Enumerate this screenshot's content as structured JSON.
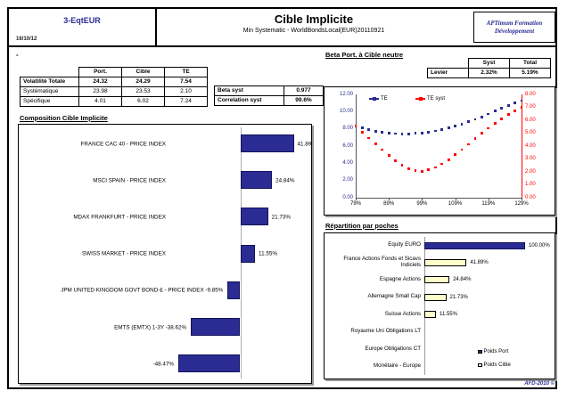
{
  "page": {
    "code": "3-EqtEUR",
    "date": "16/10/12",
    "title": "Cible Implicite",
    "subtitle": "Min Systematic - WorldBondsLocal(EUR)20110921",
    "org_line1": "APTimum Formation",
    "org_line2": "Développement",
    "dash": "-",
    "footer": "AFD-2010 ©"
  },
  "stats_table": {
    "columns": [
      "Port.",
      "Cible",
      "TE"
    ],
    "rows": [
      {
        "label": "Volatilité Totale",
        "values": [
          "24.32",
          "24.29",
          "7.54"
        ]
      },
      {
        "label": "Systématique",
        "values": [
          "23.98",
          "23.53",
          "2.10"
        ]
      },
      {
        "label": "Spécifique",
        "values": [
          "4.01",
          "6.02",
          "7.24"
        ]
      }
    ]
  },
  "beta_table": {
    "rows": [
      {
        "label": "Beta syst",
        "value": "0.977"
      },
      {
        "label": "Correlation syst",
        "value": "99.6%"
      }
    ]
  },
  "beta_section": {
    "heading": "Beta Port. à Cible neutre",
    "levier": {
      "columns": [
        "Syst",
        "Total"
      ],
      "row_label": "Levier",
      "values": [
        "2.32%",
        "5.19%"
      ]
    }
  },
  "chart_data": [
    {
      "id": "composition",
      "type": "bar",
      "orientation": "horizontal",
      "title": "Composition Cible Implicite",
      "bar_color": "#2b2b94",
      "xlim": [
        -60,
        60
      ],
      "rows": [
        {
          "category": "FRANCE CAC 40 - PRICE INDEX",
          "value": 41.89,
          "value_label": "41.89%"
        },
        {
          "category": "MSCI SPAIN - PRICE INDEX",
          "value": 24.84,
          "value_label": "24.84%"
        },
        {
          "category": "MDAX FRANKFURT - PRICE INDEX",
          "value": 21.73,
          "value_label": "21.73%"
        },
        {
          "category": "SWISS MARKET - PRICE INDEX",
          "value": 11.55,
          "value_label": "11.55%"
        },
        {
          "category": "JPM UNITED KINGDOM GOVT BOND-£ - PRICE INDEX",
          "value": -9.85,
          "value_label": "-9.85%"
        },
        {
          "category": "EMTS (EMTX) 1-3Y",
          "value": -38.62,
          "value_label": "-38.62%"
        },
        {
          "category": "",
          "value": -48.47,
          "value_label": "-48.47%"
        }
      ]
    },
    {
      "id": "te_curves",
      "type": "line",
      "title": "",
      "x_min": 79,
      "x_max": 129,
      "x_ticks": [
        79,
        89,
        99,
        109,
        119,
        129
      ],
      "x_tick_labels": [
        "79%",
        "89%",
        "99%",
        "109%",
        "119%",
        "129%"
      ],
      "left_axis": {
        "min": 0,
        "max": 12,
        "tick_labels": [
          "0.00",
          "2.00",
          "4.00",
          "6.00",
          "8.00",
          "10.00",
          "12.00"
        ],
        "color": "#2b2b94"
      },
      "right_axis": {
        "min": 0,
        "max": 8,
        "tick_labels": [
          "0.00",
          "1.00",
          "2.00",
          "3.00",
          "4.00",
          "5.00",
          "6.00",
          "7.00",
          "8.00"
        ],
        "color": "#ff0000"
      },
      "legend_position": "top-inside",
      "series": [
        {
          "name": "TE",
          "color": "#2b2b94",
          "axis": "left",
          "x": [
            79,
            81,
            83,
            85,
            87,
            89,
            91,
            93,
            95,
            97,
            99,
            101,
            103,
            105,
            107,
            109,
            111,
            113,
            115,
            117,
            119,
            121,
            123,
            125,
            127,
            129
          ],
          "y": [
            8.35,
            8.1,
            7.9,
            7.72,
            7.58,
            7.5,
            7.44,
            7.42,
            7.42,
            7.46,
            7.52,
            7.62,
            7.75,
            7.92,
            8.1,
            8.32,
            8.56,
            8.82,
            9.1,
            9.4,
            9.72,
            10.05,
            10.38,
            10.68,
            10.98,
            11.28
          ]
        },
        {
          "name": "TE syst",
          "color": "#ff0000",
          "axis": "right",
          "x": [
            79,
            81,
            83,
            85,
            87,
            89,
            91,
            93,
            95,
            97,
            99,
            101,
            103,
            105,
            107,
            109,
            111,
            113,
            115,
            117,
            119,
            121,
            123,
            125,
            127,
            129
          ],
          "y": [
            5.55,
            5.08,
            4.62,
            4.16,
            3.72,
            3.28,
            2.88,
            2.52,
            2.25,
            2.08,
            2.05,
            2.15,
            2.35,
            2.62,
            2.95,
            3.32,
            3.72,
            4.14,
            4.56,
            4.98,
            5.38,
            5.76,
            6.12,
            6.45,
            6.75,
            7.0
          ]
        }
      ]
    },
    {
      "id": "repartition",
      "type": "bar",
      "orientation": "horizontal",
      "title": "Répartition par poches",
      "xlim": [
        0,
        110
      ],
      "legend": [
        {
          "name": "Poids Port",
          "color": "#2b2b94"
        },
        {
          "name": "Poids Cible",
          "color": "#ffffcc"
        }
      ],
      "rows": [
        {
          "category": "Equity EURO",
          "value": 100.0,
          "value_label": "100.00%",
          "series": "Poids Port"
        },
        {
          "category": "France Actions Fonds et Sicavs Indiciels",
          "value": 41.89,
          "value_label": "41.89%",
          "series": "Poids Cible"
        },
        {
          "category": "Espagne Actions",
          "value": 24.84,
          "value_label": "24.84%",
          "series": "Poids Cible"
        },
        {
          "category": "Allemagne Small Cap",
          "value": 21.73,
          "value_label": "21.73%",
          "series": "Poids Cible"
        },
        {
          "category": "Suisse Actions",
          "value": 11.55,
          "value_label": "11.55%",
          "series": "Poids Cible"
        },
        {
          "category": "Royaume Uni Obligations LT",
          "value": 0,
          "value_label": "",
          "series": "Poids Cible"
        },
        {
          "category": "Europe Obligations CT",
          "value": 0,
          "value_label": "",
          "series": "Poids Cible"
        },
        {
          "category": "Monétaire - Europe",
          "value": 0,
          "value_label": "",
          "series": "Poids Cible"
        }
      ]
    }
  ]
}
